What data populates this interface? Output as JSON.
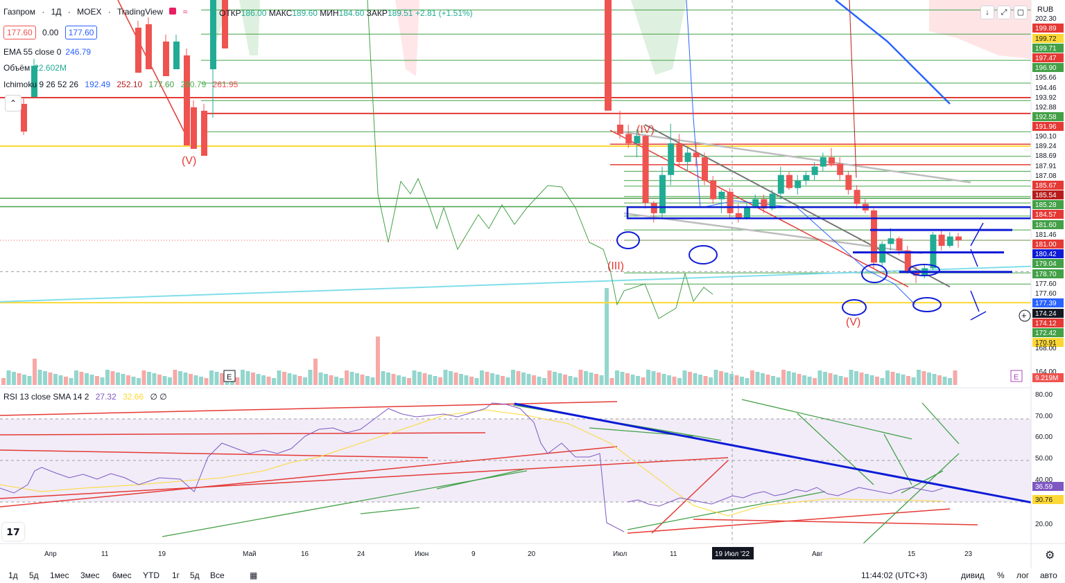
{
  "header": {
    "symbol": "Газпром",
    "interval": "1Д",
    "exchange": "MOEX",
    "source": "TradingView",
    "ohlc": {
      "open_label": "ОТКР",
      "open": "186.00",
      "high_label": "МАКС",
      "high": "189.60",
      "low_label": "МИН",
      "low": "184.60",
      "close_label": "ЗАКР",
      "close": "189.51",
      "change": "+2.81 (+1.51%)"
    },
    "bid": "177.60",
    "spread": "0.00",
    "ask": "177.60",
    "currency": "RUB"
  },
  "indicators": [
    {
      "label": "EMA 55 close 0",
      "values": [
        "246.79"
      ],
      "colors": [
        "#2962ff"
      ]
    },
    {
      "label": "Объём",
      "values": [
        "22.602M"
      ],
      "colors": [
        "#22ab94"
      ]
    },
    {
      "label": "Ichimoku 9 26 52 26",
      "values": [
        "192.49",
        "252.10",
        "177.60",
        "290.79",
        "261.95"
      ],
      "colors": [
        "#2962ff",
        "#b71c1c",
        "#43a047",
        "#4caf50",
        "#ef5350"
      ]
    }
  ],
  "rsi_legend": {
    "label": "RSI 13 close SMA 14 2",
    "values": [
      "27.32",
      "32.66"
    ],
    "colors": [
      "#7e57c2",
      "#fdd835"
    ],
    "extra": "∅ ∅"
  },
  "price_axis": {
    "labels": [
      "202.30",
      "199.89",
      "199.72",
      "199.71",
      "197.47",
      "196.90",
      "195.66",
      "194.46",
      "193.92",
      "192.88",
      "192.58",
      "191.96",
      "190.10",
      "189.24",
      "188.69",
      "187.91",
      "187.08",
      "185.67",
      "185.54",
      "185.28",
      "184.57",
      "181.60",
      "181.46",
      "181.00",
      "180.42",
      "179.04",
      "178.70",
      "177.60",
      "177.60",
      "177.39",
      "174.24",
      "174.12",
      "172.42",
      "170.91",
      "168.00",
      "164.00",
      "9.219M"
    ],
    "rsi_labels": [
      "80.00",
      "70.00",
      "60.00",
      "50.00",
      "40.00",
      "36.59",
      "30.76",
      "20.00"
    ]
  },
  "time_axis": {
    "labels": [
      "Апр",
      "11",
      "19",
      "Май",
      "16",
      "24",
      "Июн",
      "9",
      "20",
      "Июл",
      "11",
      "Авг",
      "15",
      "23"
    ],
    "crosshair_date": "19 Июл '22"
  },
  "bottom_bar": {
    "ranges": [
      "1д",
      "5д",
      "1мес",
      "3мес",
      "6мес",
      "YTD",
      "1г",
      "5д",
      "Все"
    ],
    "time": "11:44:02 (UTC+3)",
    "options": [
      "дивид",
      "%",
      "лог",
      "авто"
    ]
  },
  "annotations": {
    "wave_v_left": "(V)",
    "wave_iv": "(IV)",
    "wave_iii": "(III)",
    "wave_v_right": "(V)",
    "e_marker": "E"
  },
  "chart_data": [
    {
      "type": "candlestick",
      "title": "",
      "ylim": [
        162,
        203
      ],
      "x_ticks": [
        "Апр",
        "11",
        "19",
        "Май",
        "16",
        "24",
        "Июн",
        "9",
        "20",
        "Июл",
        "11",
        "Авг",
        "15",
        "23"
      ],
      "candles": [
        {
          "o": 190.0,
          "h": 191.5,
          "l": 188.5,
          "c": 189.0
        },
        {
          "o": 189.0,
          "h": 190.0,
          "l": 187.5,
          "c": 188.0
        },
        {
          "o": 188.0,
          "h": 189.5,
          "l": 186.5,
          "c": 188.8
        },
        {
          "o": 188.8,
          "h": 188.9,
          "l": 181.0,
          "c": 181.6
        },
        {
          "o": 181.6,
          "h": 181.8,
          "l": 179.5,
          "c": 180.5
        },
        {
          "o": 180.5,
          "h": 185.5,
          "l": 180.0,
          "c": 184.6
        },
        {
          "o": 184.6,
          "h": 190.1,
          "l": 183.5,
          "c": 188.0
        },
        {
          "o": 188.0,
          "h": 189.0,
          "l": 185.5,
          "c": 186.0
        },
        {
          "o": 186.0,
          "h": 187.5,
          "l": 185.0,
          "c": 187.0
        },
        {
          "o": 187.0,
          "h": 188.0,
          "l": 185.5,
          "c": 186.5
        },
        {
          "o": 186.5,
          "h": 187.0,
          "l": 183.5,
          "c": 184.0
        },
        {
          "o": 184.0,
          "h": 184.5,
          "l": 181.5,
          "c": 182.0
        },
        {
          "o": 182.0,
          "h": 183.0,
          "l": 180.5,
          "c": 182.8
        },
        {
          "o": 182.8,
          "h": 183.2,
          "l": 180.0,
          "c": 180.5
        },
        {
          "o": 180.5,
          "h": 181.5,
          "l": 179.5,
          "c": 180.0
        },
        {
          "o": 180.0,
          "h": 181.8,
          "l": 179.8,
          "c": 181.2
        },
        {
          "o": 181.2,
          "h": 182.5,
          "l": 181.0,
          "c": 182.0
        },
        {
          "o": 182.0,
          "h": 182.5,
          "l": 180.5,
          "c": 181.0
        },
        {
          "o": 181.0,
          "h": 183.0,
          "l": 180.8,
          "c": 182.6
        },
        {
          "o": 182.6,
          "h": 185.5,
          "l": 182.0,
          "c": 184.6
        },
        {
          "o": 184.6,
          "h": 185.0,
          "l": 183.0,
          "c": 183.2
        },
        {
          "o": 183.2,
          "h": 184.6,
          "l": 182.5,
          "c": 184.0
        },
        {
          "o": 184.0,
          "h": 185.0,
          "l": 183.5,
          "c": 184.6
        },
        {
          "o": 184.6,
          "h": 186.0,
          "l": 184.0,
          "c": 185.5
        },
        {
          "o": 185.5,
          "h": 187.0,
          "l": 185.0,
          "c": 186.5
        },
        {
          "o": 186.5,
          "h": 187.5,
          "l": 185.5,
          "c": 185.8
        },
        {
          "o": 185.8,
          "h": 186.5,
          "l": 184.0,
          "c": 184.6
        },
        {
          "o": 184.6,
          "h": 185.0,
          "l": 182.5,
          "c": 183.0
        },
        {
          "o": 183.0,
          "h": 183.5,
          "l": 181.0,
          "c": 181.5
        },
        {
          "o": 181.5,
          "h": 182.0,
          "l": 180.5,
          "c": 180.8
        },
        {
          "o": 180.8,
          "h": 181.0,
          "l": 174.5,
          "c": 175.2
        },
        {
          "o": 175.2,
          "h": 177.5,
          "l": 174.8,
          "c": 177.2
        },
        {
          "o": 177.2,
          "h": 178.9,
          "l": 176.5,
          "c": 177.8
        },
        {
          "o": 177.8,
          "h": 178.0,
          "l": 176.0,
          "c": 176.5
        },
        {
          "o": 176.5,
          "h": 177.0,
          "l": 174.0,
          "c": 174.3
        },
        {
          "o": 174.3,
          "h": 174.8,
          "l": 173.0,
          "c": 173.8
        },
        {
          "o": 173.8,
          "h": 175.0,
          "l": 173.5,
          "c": 174.6
        },
        {
          "o": 174.6,
          "h": 178.5,
          "l": 174.4,
          "c": 178.2
        },
        {
          "o": 178.2,
          "h": 178.8,
          "l": 176.5,
          "c": 177.0
        },
        {
          "o": 177.0,
          "h": 178.5,
          "l": 176.8,
          "c": 178.0
        },
        {
          "o": 178.0,
          "h": 178.4,
          "l": 176.8,
          "c": 177.6
        }
      ]
    },
    {
      "type": "line",
      "title": "",
      "ylim": [
        10,
        85
      ],
      "series": [
        {
          "name": "RSI 13 close SMA 14 2",
          "values": [
            30,
            31,
            29,
            28,
            30,
            32,
            31,
            30,
            29,
            31,
            33,
            32,
            34,
            35,
            33,
            34,
            36,
            35,
            37,
            34,
            33,
            35,
            37,
            36,
            35,
            34,
            36,
            37,
            36,
            35,
            36.59
          ]
        }
      ]
    }
  ]
}
